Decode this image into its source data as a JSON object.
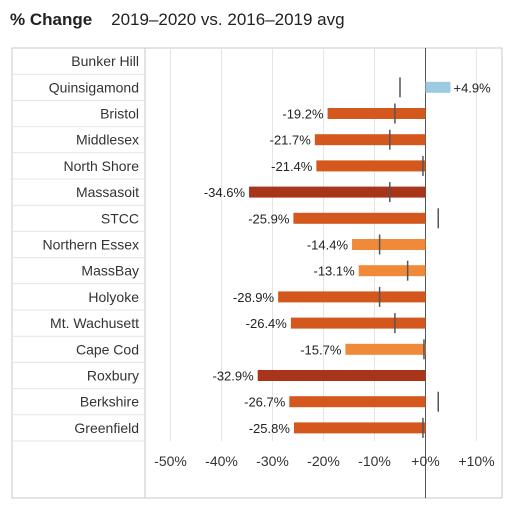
{
  "header": {
    "title_bold": "% Change",
    "title_rest": "2019–2020 vs. 2016–2019 avg"
  },
  "colors": {
    "positive": "#9ecae1",
    "light": "#f08a3a",
    "mid": "#d4581e",
    "dark": "#a8351a",
    "marker": "#555555",
    "grid": "#e4e4e4",
    "border": "#c8c8c8"
  },
  "chart_data": {
    "type": "bar",
    "orientation": "horizontal",
    "categories": [
      "Bunker Hill",
      "Quinsigamond",
      "Bristol",
      "Middlesex",
      "North Shore",
      "Massasoit",
      "STCC",
      "Northern Essex",
      "MassBay",
      "Holyoke",
      "Mt. Wachusett",
      "Cape Cod",
      "Roxbury",
      "Berkshire",
      "Greenfield"
    ],
    "values": [
      null,
      4.9,
      -19.2,
      -21.7,
      -21.4,
      -34.6,
      -25.9,
      -14.4,
      -13.1,
      -28.9,
      -26.4,
      -15.7,
      -32.9,
      -26.7,
      -25.8
    ],
    "value_labels": [
      "",
      "+4.9%",
      "-19.2%",
      "-21.7%",
      "-21.4%",
      "-34.6%",
      "-25.9%",
      "-14.4%",
      "-13.1%",
      "-28.9%",
      "-26.4%",
      "-15.7%",
      "-32.9%",
      "-26.7%",
      "-25.8%"
    ],
    "reference_markers": [
      null,
      -5.0,
      -6.0,
      -7.0,
      -0.5,
      -7.0,
      2.5,
      -9.0,
      -3.5,
      -9.0,
      -6.0,
      -0.3,
      null,
      2.5,
      -0.5
    ],
    "xlim": [
      -55,
      15
    ],
    "xticks": [
      -50,
      -40,
      -30,
      -20,
      -10,
      0,
      10
    ],
    "xtick_labels": [
      "-50%",
      "-40%",
      "-30%",
      "-20%",
      "-10%",
      "+0%",
      "+10%"
    ],
    "xlabel": "",
    "ylabel": "",
    "grid": true
  }
}
